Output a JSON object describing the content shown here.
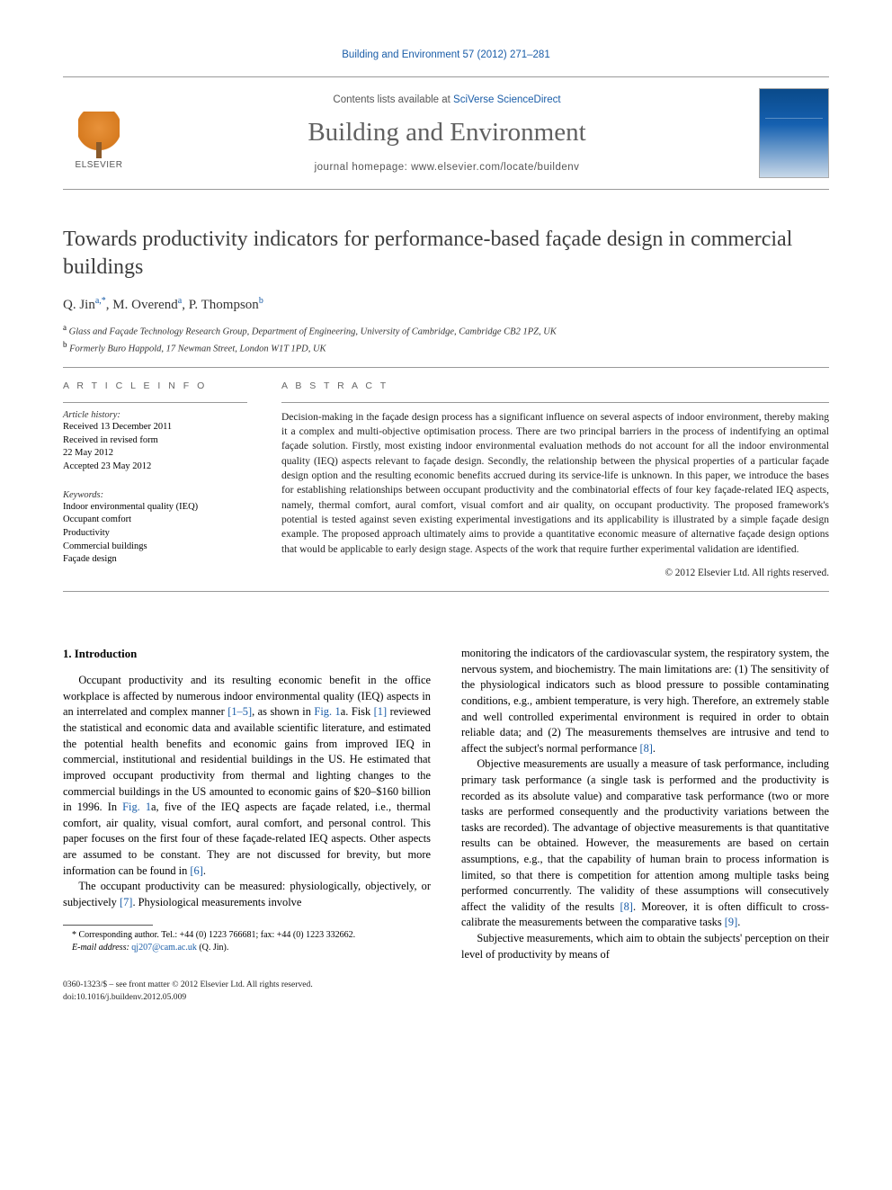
{
  "running_header": "Building and Environment 57 (2012) 271–281",
  "masthead": {
    "publisher_name": "ELSEVIER",
    "contents_prefix": "Contents lists available at ",
    "contents_link": "SciVerse ScienceDirect",
    "journal_name": "Building and Environment",
    "homepage_prefix": "journal homepage: ",
    "homepage_url": "www.elsevier.com/locate/buildenv",
    "cover_title": "Building and Environment"
  },
  "article": {
    "title": "Towards productivity indicators for performance-based façade design in commercial buildings",
    "authors_html": "Q. Jin",
    "author1": "Q. Jin",
    "author1_marks": "a,*",
    "author2": ", M. Overend",
    "author2_marks": "a",
    "author3": ", P. Thompson",
    "author3_marks": "b",
    "affiliations": [
      {
        "mark": "a",
        "text": "Glass and Façade Technology Research Group, Department of Engineering, University of Cambridge, Cambridge CB2 1PZ, UK"
      },
      {
        "mark": "b",
        "text": "Formerly Buro Happold, 17 Newman Street, London W1T 1PD, UK"
      }
    ]
  },
  "labels": {
    "article_info": "A R T I C L E  I N F O",
    "abstract": "A B S T R A C T",
    "history": "Article history:",
    "keywords": "Keywords:"
  },
  "history": {
    "received": "Received 13 December 2011",
    "revised1": "Received in revised form",
    "revised2": "22 May 2012",
    "accepted": "Accepted 23 May 2012"
  },
  "keywords": [
    "Indoor environmental quality (IEQ)",
    "Occupant comfort",
    "Productivity",
    "Commercial buildings",
    "Façade design"
  ],
  "abstract": "Decision-making in the façade design process has a significant influence on several aspects of indoor environment, thereby making it a complex and multi-objective optimisation process. There are two principal barriers in the process of indentifying an optimal façade solution. Firstly, most existing indoor environmental evaluation methods do not account for all the indoor environmental quality (IEQ) aspects relevant to façade design. Secondly, the relationship between the physical properties of a particular façade design option and the resulting economic benefits accrued during its service-life is unknown. In this paper, we introduce the bases for establishing relationships between occupant productivity and the combinatorial effects of four key façade-related IEQ aspects, namely, thermal comfort, aural comfort, visual comfort and air quality, on occupant productivity. The proposed framework's potential is tested against seven existing experimental investigations and its applicability is illustrated by a simple façade design example. The proposed approach ultimately aims to provide a quantitative economic measure of alternative façade design options that would be applicable to early design stage. Aspects of the work that require further experimental validation are identified.",
  "copyright": "© 2012 Elsevier Ltd. All rights reserved.",
  "body": {
    "heading1": "1. Introduction",
    "p1a": "Occupant productivity and its resulting economic benefit in the office workplace is affected by numerous indoor environmental quality (IEQ) aspects in an interrelated and complex manner ",
    "p1_ref1": "[1–5]",
    "p1b": ", as shown in ",
    "p1_ref2": "Fig. 1",
    "p1c": "a. Fisk ",
    "p1_ref3": "[1]",
    "p1d": " reviewed the statistical and economic data and available scientific literature, and estimated the potential health benefits and economic gains from improved IEQ in commercial, institutional and residential buildings in the US. He estimated that improved occupant productivity from thermal and lighting changes to the commercial buildings in the US amounted to economic gains of $20–$160 billion in 1996. In ",
    "p1_ref4": "Fig. 1",
    "p1e": "a, five of the IEQ aspects are façade related, i.e., thermal comfort, air quality, visual comfort, aural comfort, and personal control. This paper focuses on the first four of these façade-related IEQ aspects. Other aspects are assumed to be constant. They are not discussed for brevity, but more information can be found in ",
    "p1_ref5": "[6]",
    "p1f": ".",
    "p2a": "The occupant productivity can be measured: physiologically, objectively, or subjectively ",
    "p2_ref1": "[7]",
    "p2b": ". Physiological measurements involve",
    "p3a": "monitoring the indicators of the cardiovascular system, the respiratory system, the nervous system, and biochemistry. The main limitations are: (1) The sensitivity of the physiological indicators such as blood pressure to possible contaminating conditions, e.g., ambient temperature, is very high. Therefore, an extremely stable and well controlled experimental environment is required in order to obtain reliable data; and (2) The measurements themselves are intrusive and tend to affect the subject's normal performance ",
    "p3_ref1": "[8]",
    "p3b": ".",
    "p4a": "Objective measurements are usually a measure of task performance, including primary task performance (a single task is performed and the productivity is recorded as its absolute value) and comparative task performance (two or more tasks are performed consequently and the productivity variations between the tasks are recorded). The advantage of objective measurements is that quantitative results can be obtained. However, the measurements are based on certain assumptions, e.g., that the capability of human brain to process information is limited, so that there is competition for attention among multiple tasks being performed concurrently. The validity of these assumptions will consecutively affect the validity of the results ",
    "p4_ref1": "[8]",
    "p4b": ". Moreover, it is often difficult to cross-calibrate the measurements between the comparative tasks ",
    "p4_ref2": "[9]",
    "p4c": ".",
    "p5": "Subjective measurements, which aim to obtain the subjects' perception on their level of productivity by means of"
  },
  "footnote": {
    "corr": "* Corresponding author. Tel.: +44 (0) 1223 766681; fax: +44 (0) 1223 332662.",
    "email_label": "E-mail address: ",
    "email": "qj207@cam.ac.uk",
    "email_who": " (Q. Jin)."
  },
  "footer": {
    "line1": "0360-1323/$ – see front matter © 2012 Elsevier Ltd. All rights reserved.",
    "line2_prefix": "doi:",
    "line2_doi": "10.1016/j.buildenv.2012.05.009"
  },
  "colors": {
    "link": "#1a5da8",
    "text": "#000000",
    "heading_gray": "#3d3d3d",
    "rule": "#999999"
  }
}
